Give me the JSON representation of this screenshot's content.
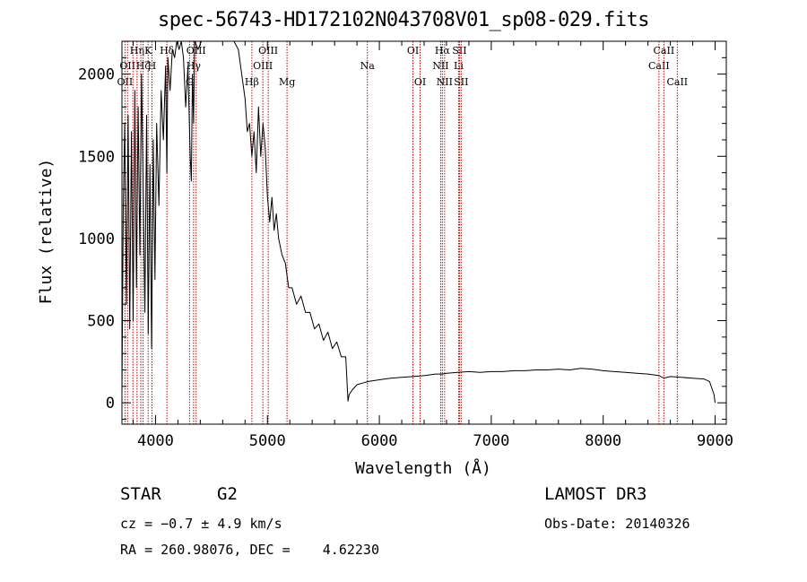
{
  "chart_data": {
    "type": "line",
    "title": "spec-56743-HD172102N043708V01_sp08-029.fits",
    "xlabel": "Wavelength (Å)",
    "ylabel": "Flux (relative)",
    "xlim": [
      3700,
      9100
    ],
    "ylim": [
      -130,
      2200
    ],
    "x_ticks": [
      4000,
      5000,
      6000,
      7000,
      8000,
      9000
    ],
    "y_ticks": [
      0,
      500,
      1000,
      1500,
      2000
    ],
    "series": [
      {
        "name": "flux",
        "x": [
          3700,
          3712,
          3725,
          3740,
          3755,
          3770,
          3785,
          3800,
          3815,
          3830,
          3845,
          3860,
          3875,
          3890,
          3905,
          3920,
          3935,
          3950,
          3965,
          3980,
          3995,
          4010,
          4030,
          4050,
          4070,
          4090,
          4101,
          4110,
          4130,
          4150,
          4170,
          4190,
          4210,
          4230,
          4250,
          4270,
          4290,
          4310,
          4320,
          4330,
          4340,
          4350,
          4380,
          4410,
          4440,
          4470,
          4500,
          4530,
          4560,
          4590,
          4620,
          4660,
          4700,
          4740,
          4780,
          4800,
          4820,
          4840,
          4861,
          4880,
          4900,
          4920,
          4940,
          4960,
          4980,
          5000,
          5020,
          5040,
          5060,
          5080,
          5100,
          5130,
          5160,
          5190,
          5220,
          5260,
          5300,
          5340,
          5380,
          5420,
          5460,
          5500,
          5540,
          5580,
          5620,
          5660,
          5700,
          5720,
          5730,
          5760,
          5800,
          5850,
          5900,
          6000,
          6100,
          6200,
          6300,
          6400,
          6500,
          6563,
          6600,
          6700,
          6800,
          6900,
          7000,
          7100,
          7200,
          7300,
          7400,
          7500,
          7600,
          7700,
          7800,
          7900,
          8000,
          8100,
          8200,
          8300,
          8400,
          8500,
          8542,
          8600,
          8700,
          8800,
          8900,
          8950,
          8990,
          9000
        ],
        "y": [
          50,
          1200,
          1700,
          600,
          1750,
          450,
          1650,
          500,
          1900,
          700,
          1800,
          900,
          2000,
          1300,
          550,
          1750,
          420,
          1450,
          330,
          1600,
          750,
          1700,
          1200,
          1900,
          1600,
          2050,
          1400,
          2100,
          1900,
          2150,
          2100,
          2200,
          2150,
          2200,
          2100,
          1800,
          2050,
          1500,
          1350,
          2000,
          1700,
          2200,
          2150,
          2200,
          2200,
          2200,
          2200,
          2200,
          2200,
          2200,
          2200,
          2200,
          2200,
          2150,
          1950,
          1850,
          1650,
          1700,
          1500,
          1650,
          1400,
          1800,
          1500,
          1700,
          1550,
          1250,
          1100,
          1250,
          1050,
          1150,
          1000,
          900,
          850,
          700,
          700,
          600,
          650,
          550,
          550,
          450,
          480,
          380,
          430,
          330,
          370,
          280,
          280,
          10,
          50,
          80,
          110,
          120,
          130,
          140,
          150,
          155,
          160,
          165,
          175,
          175,
          180,
          185,
          190,
          185,
          190,
          190,
          195,
          195,
          200,
          200,
          205,
          200,
          210,
          205,
          195,
          190,
          185,
          180,
          175,
          165,
          150,
          160,
          155,
          150,
          145,
          130,
          50,
          0
        ]
      }
    ],
    "line_markers": [
      {
        "wavelength": 3727,
        "label": "OII",
        "row": 2
      },
      {
        "wavelength": 3750,
        "label": "OII",
        "row": 1
      },
      {
        "wavelength": 3798,
        "label": "",
        "row": 0
      },
      {
        "wavelength": 3835,
        "label": "Hη",
        "row": 0
      },
      {
        "wavelength": 3869,
        "label": "",
        "row": 0
      },
      {
        "wavelength": 3889,
        "label": "Hζ",
        "row": 1
      },
      {
        "wavelength": 3934,
        "label": "K",
        "row": 0
      },
      {
        "wavelength": 3968,
        "label": "H",
        "row": 1
      },
      {
        "wavelength": 4102,
        "label": "Hδ",
        "row": 0
      },
      {
        "wavelength": 4304,
        "label": "G",
        "row": 2
      },
      {
        "wavelength": 4340,
        "label": "Hγ",
        "row": 1
      },
      {
        "wavelength": 4363,
        "label": "OIII",
        "row": 0
      },
      {
        "wavelength": 4861,
        "label": "Hβ",
        "row": 2
      },
      {
        "wavelength": 4959,
        "label": "OIII",
        "row": 1
      },
      {
        "wavelength": 5007,
        "label": "OIII",
        "row": 0
      },
      {
        "wavelength": 5175,
        "label": "Mg",
        "row": 2
      },
      {
        "wavelength": 5893,
        "label": "Na",
        "row": 1
      },
      {
        "wavelength": 6300,
        "label": "OI",
        "row": 0
      },
      {
        "wavelength": 6364,
        "label": "OI",
        "row": 2
      },
      {
        "wavelength": 6548,
        "label": "NII",
        "row": 1
      },
      {
        "wavelength": 6563,
        "label": "Hα",
        "row": 0
      },
      {
        "wavelength": 6583,
        "label": "NII",
        "row": 2
      },
      {
        "wavelength": 6708,
        "label": "Li",
        "row": 1
      },
      {
        "wavelength": 6716,
        "label": "SII",
        "row": 0
      },
      {
        "wavelength": 6731,
        "label": "SII",
        "row": 2
      },
      {
        "wavelength": 8498,
        "label": "CaII",
        "row": 1
      },
      {
        "wavelength": 8542,
        "label": "CaII",
        "row": 0
      },
      {
        "wavelength": 8662,
        "label": "CaII",
        "row": 2
      }
    ],
    "colors": {
      "spectrum": "#000000",
      "line_marker": "#cc0000",
      "axes": "#000000"
    }
  },
  "footer": {
    "object_class": "STAR",
    "subclass": "G2",
    "survey": "LAMOST DR3",
    "cz": "cz = −0.7 ± 4.9 km/s",
    "obs_date": "Obs-Date: 20140326",
    "coords": "RA = 260.98076, DEC =    4.62230"
  }
}
